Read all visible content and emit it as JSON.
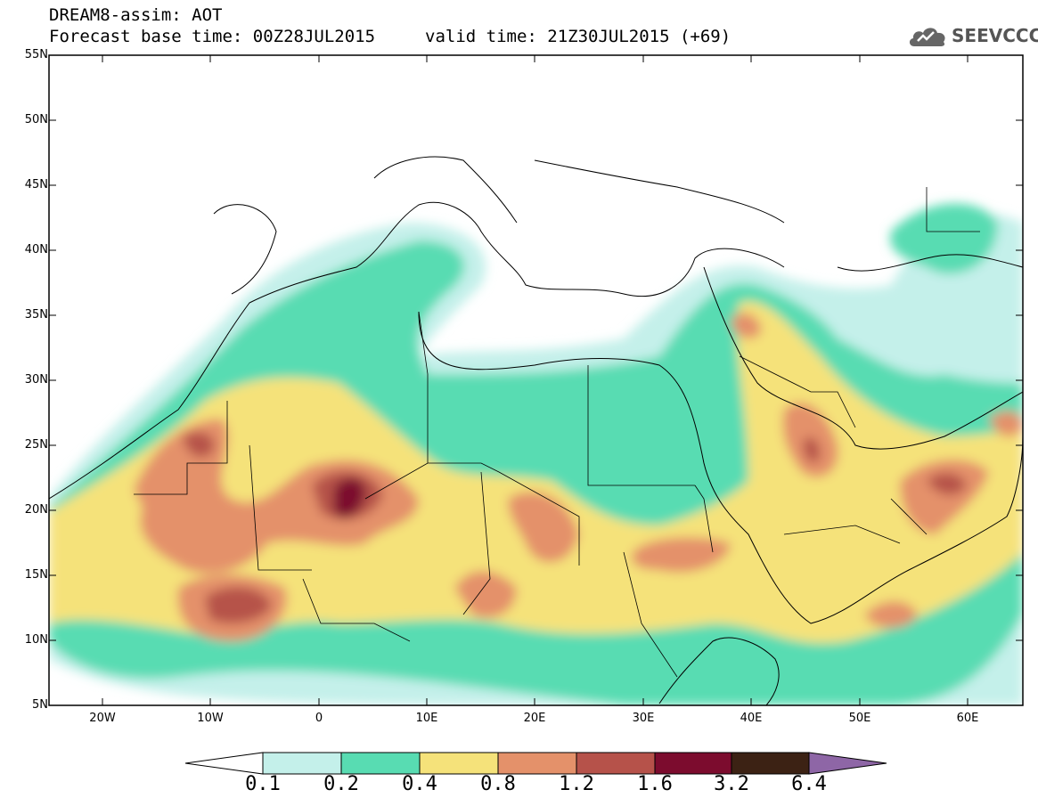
{
  "title": {
    "line1": "DREAM8-assim: AOT",
    "line2": "Forecast base time: 00Z28JUL2015",
    "valid": "valid time: 21Z30JUL2015 (+69)"
  },
  "logo": {
    "icon": "cloud-icon",
    "text": "SEEVCCC"
  },
  "map": {
    "projection": "lat-lon",
    "lon_range": [
      -25,
      65
    ],
    "lat_range": [
      5,
      55
    ],
    "lat_ticks": [
      "55N",
      "50N",
      "45N",
      "40N",
      "35N",
      "30N",
      "25N",
      "20N",
      "15N",
      "10N",
      "5N"
    ],
    "lon_ticks": [
      "20W",
      "10W",
      "0",
      "10E",
      "20E",
      "30E",
      "40E",
      "50E",
      "60E"
    ]
  },
  "colorbar": {
    "labels": [
      "0.1",
      "0.2",
      "0.4",
      "0.8",
      "1.2",
      "1.6",
      "3.2",
      "6.4"
    ],
    "colors": [
      "#ffffff",
      "#c4f0ea",
      "#58dcb2",
      "#f5e27a",
      "#e4916a",
      "#b6524a",
      "#7c0c2e",
      "#3c2214",
      "#8e66a6"
    ]
  }
}
